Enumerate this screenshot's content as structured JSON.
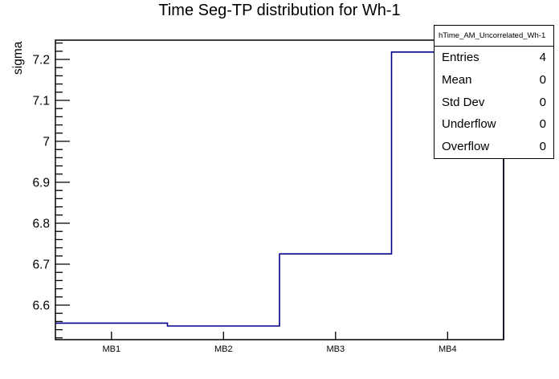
{
  "title": "Time Seg-TP distribution for Wh-1",
  "chart_data": {
    "type": "step-histogram",
    "title": "Time Seg-TP distribution for Wh-1",
    "series_name": "hTime_AM_Uncorrelated_Wh-1",
    "categories": [
      "MB1",
      "MB2",
      "MB3",
      "MB4"
    ],
    "values": [
      6.556,
      6.549,
      6.725,
      7.218
    ],
    "xlabel": "",
    "ylabel": "sigma",
    "ylim": [
      6.5156,
      7.247
    ],
    "y_major_ticks": [
      6.6,
      6.7,
      6.8,
      6.9,
      7.0,
      7.1,
      7.2
    ],
    "y_tick_labels": [
      "6.6",
      "6.7",
      "6.8",
      "6.9",
      "7",
      "7.1",
      "7.2"
    ],
    "y_minor_step": 0.02,
    "grid": false,
    "legend": false,
    "line_color": "#00008B",
    "axis_color": "#000000",
    "background_color": "#ffffff"
  },
  "stats_box": {
    "header": "hTime_AM_Uncorrelated_Wh-1",
    "rows": [
      {
        "label": "Entries",
        "value": "4"
      },
      {
        "label": "Mean",
        "value": "0"
      },
      {
        "label": "Std Dev",
        "value": "0"
      },
      {
        "label": "Underflow",
        "value": "0"
      },
      {
        "label": "Overflow",
        "value": "0"
      }
    ]
  }
}
